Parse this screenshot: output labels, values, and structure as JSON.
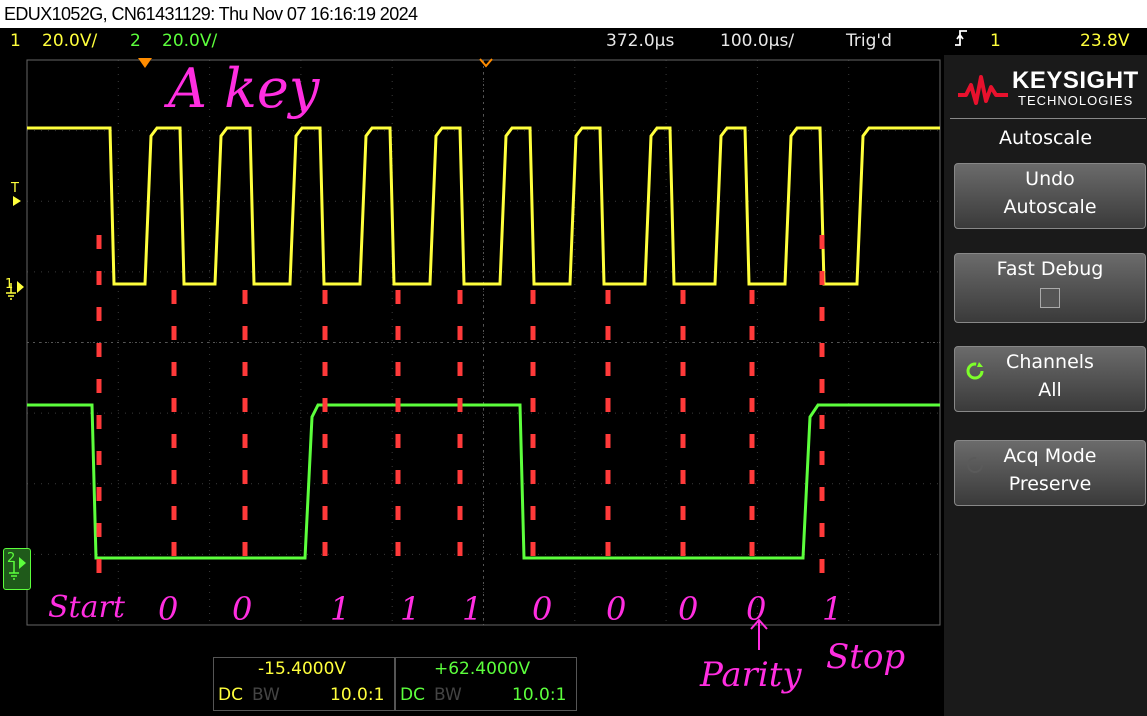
{
  "titlebar": {
    "text": "EDUX1052G, CN61431129: Thu Nov 07 16:16:19 2024"
  },
  "status": {
    "ch1_num": "1",
    "ch1_scale": "20.0V/",
    "ch2_num": "2",
    "ch2_scale": "20.0V/",
    "delay": "372.0µs",
    "timebase": "100.0µs/",
    "trigger_state": "Trig'd",
    "trigger_slope_icon": "rising-edge-icon",
    "trigger_source": "1",
    "trigger_level": "23.8V"
  },
  "channel_markers": {
    "ch1": "1",
    "ch2": "2",
    "trigger": "T"
  },
  "bottom": {
    "ch1_offset": "-15.4000V",
    "ch1_coupling": "DC",
    "ch1_bw": "BW",
    "ch1_probe": "10.0:1",
    "ch2_offset": "+62.4000V",
    "ch2_coupling": "DC",
    "ch2_bw": "BW",
    "ch2_probe": "10.0:1"
  },
  "sidebar": {
    "brand": "KEYSIGHT",
    "brand_sub": "TECHNOLOGIES",
    "menu_title": "Autoscale",
    "keys": [
      {
        "line1": "Undo",
        "line2": "Autoscale"
      },
      {
        "line1": "Fast Debug",
        "line2": ""
      },
      {
        "line1": "Channels",
        "line2": "All"
      },
      {
        "line1": "Acq Mode",
        "line2": "Preserve"
      }
    ]
  },
  "annotations": {
    "title": "A key",
    "bits": [
      "Start",
      "0",
      "0",
      "1",
      "1",
      "1",
      "0",
      "0",
      "0",
      "0",
      "1"
    ],
    "parity": "Parity",
    "stop": "Stop"
  },
  "colors": {
    "ch1": "#ffff3c",
    "ch2": "#5cff3c",
    "annotation": "#ff2ee0",
    "marker": "#ff3a3a",
    "accent": "#ff8c00"
  }
}
